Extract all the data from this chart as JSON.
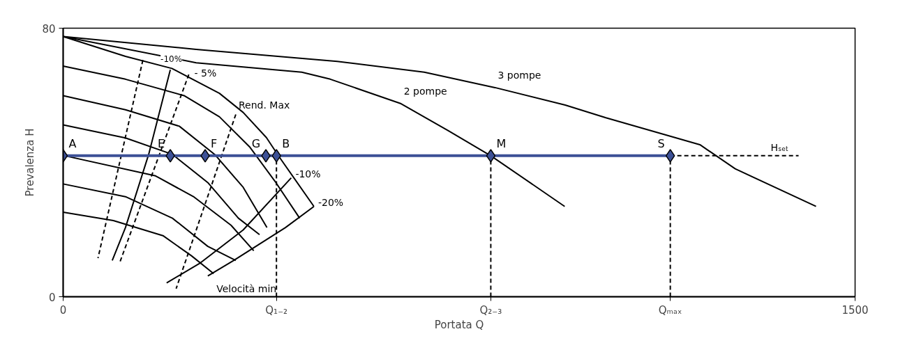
{
  "chart_data": {
    "type": "line",
    "xlabel": "Portata Q",
    "ylabel": "Prevalenza H",
    "xlim": [
      0,
      1500
    ],
    "ylim": [
      0,
      80
    ],
    "xticks": [
      0,
      {
        "value": 404,
        "label": "Q₁₋₂"
      },
      {
        "value": 810,
        "label": "Q₂₋₃"
      },
      {
        "value": 1150,
        "label": "Qₘₐₓ"
      },
      1500
    ],
    "yticks": [
      0,
      80
    ],
    "series": [
      {
        "name": "3 pompe",
        "color": "#000000",
        "x": [
          0,
          252,
          519,
          684,
          818,
          951,
          1028,
          1206,
          1273,
          1426
        ],
        "values": [
          77.5,
          73.7,
          70.1,
          66.9,
          62.3,
          57.1,
          53.3,
          45.3,
          38.1,
          26.9
        ]
      },
      {
        "name": "2 pompe",
        "color": "#000000",
        "x": [
          0,
          252,
          452,
          506,
          640,
          729,
          811,
          950
        ],
        "values": [
          77.5,
          69.7,
          66.9,
          64.8,
          57.5,
          49.5,
          41.9,
          26.9
        ]
      },
      {
        "color": "#000000",
        "x": [
          0,
          118,
          206,
          296,
          341,
          385,
          409,
          475
        ],
        "values": [
          77.5,
          71.6,
          68.0,
          60.6,
          54.9,
          47.4,
          41.7,
          26.9
        ]
      },
      {
        "color": "#000000",
        "x": [
          0,
          175,
          248,
          318,
          361
        ],
        "values": [
          42.1,
          36.0,
          29.7,
          21.3,
          13.7
        ]
      },
      {
        "color": "#000000",
        "x": [
          0,
          118,
          229,
          296,
          354,
          403,
          448
        ],
        "values": [
          68.7,
          64.8,
          59.9,
          53.6,
          44.5,
          34.0,
          23.4
        ]
      },
      {
        "color": "#000000",
        "x": [
          0,
          118,
          220,
          287,
          341,
          386
        ],
        "values": [
          59.9,
          55.7,
          50.8,
          42.4,
          32.6,
          20.6
        ]
      },
      {
        "color": "#000000",
        "x": [
          0,
          118,
          207,
          274,
          332,
          372
        ],
        "values": [
          51.2,
          47.3,
          42.4,
          34.0,
          23.4,
          18.5
        ]
      },
      {
        "color": "#000000",
        "x": [
          0,
          118,
          207,
          274,
          327
        ],
        "values": [
          33.6,
          29.8,
          23.4,
          15.0,
          10.8
        ]
      },
      {
        "name": "Velocità min",
        "color": "#000000",
        "x": [
          0,
          95,
          189,
          243,
          285
        ],
        "values": [
          25.2,
          22.7,
          18.2,
          12.2,
          6.9
        ]
      },
      {
        "name": "-10%",
        "color": "#000000",
        "x": [
          203,
          162,
          118,
          93
        ],
        "values": [
          67.6,
          42.4,
          20.6,
          10.8
        ]
      },
      {
        "name": "-10%",
        "color": "#000000",
        "x": [
          432,
          341,
          260,
          196
        ],
        "values": [
          35.4,
          19.9,
          10.1,
          4.1
        ]
      },
      {
        "name": "-20%",
        "color": "#000000",
        "x": [
          475,
          421,
          323,
          274
        ],
        "values": [
          26.9,
          20.6,
          10.8,
          6.2
        ]
      },
      {
        "color": "#000000",
        "line_style": "dashed",
        "x": [
          151,
          66
        ],
        "values": [
          70.5,
          11.5
        ]
      },
      {
        "name": "- 5%",
        "color": "#000000",
        "line_style": "dashed",
        "x": [
          238,
          107
        ],
        "values": [
          66.2,
          10.1
        ]
      },
      {
        "name": "Rend. Max",
        "color": "#000000",
        "line_style": "dashed",
        "x": [
          327,
          214
        ],
        "values": [
          54.3,
          2.4
        ]
      },
      {
        "color": "#000000",
        "line_style": "dashed",
        "x": [
          404,
          404
        ],
        "values": [
          0,
          42
        ]
      },
      {
        "color": "#000000",
        "line_style": "dashed",
        "x": [
          810,
          810
        ],
        "values": [
          0,
          42
        ]
      },
      {
        "color": "#000000",
        "line_style": "dashed",
        "x": [
          1150,
          1150
        ],
        "values": [
          0,
          42
        ]
      },
      {
        "name": "Hₛₑₜ",
        "color": "#000000",
        "line_style": "dashed",
        "x": [
          1150,
          1393
        ],
        "values": [
          42,
          42
        ]
      },
      {
        "color": "#3c5096",
        "marker": "diamond",
        "x": [
          0,
          203,
          269,
          384,
          404,
          810,
          1150
        ],
        "values": [
          42,
          42,
          42,
          42,
          42,
          42,
          42
        ],
        "value_labels": [
          "A",
          "E",
          "F",
          "G",
          "B",
          "M",
          "S"
        ]
      }
    ]
  }
}
